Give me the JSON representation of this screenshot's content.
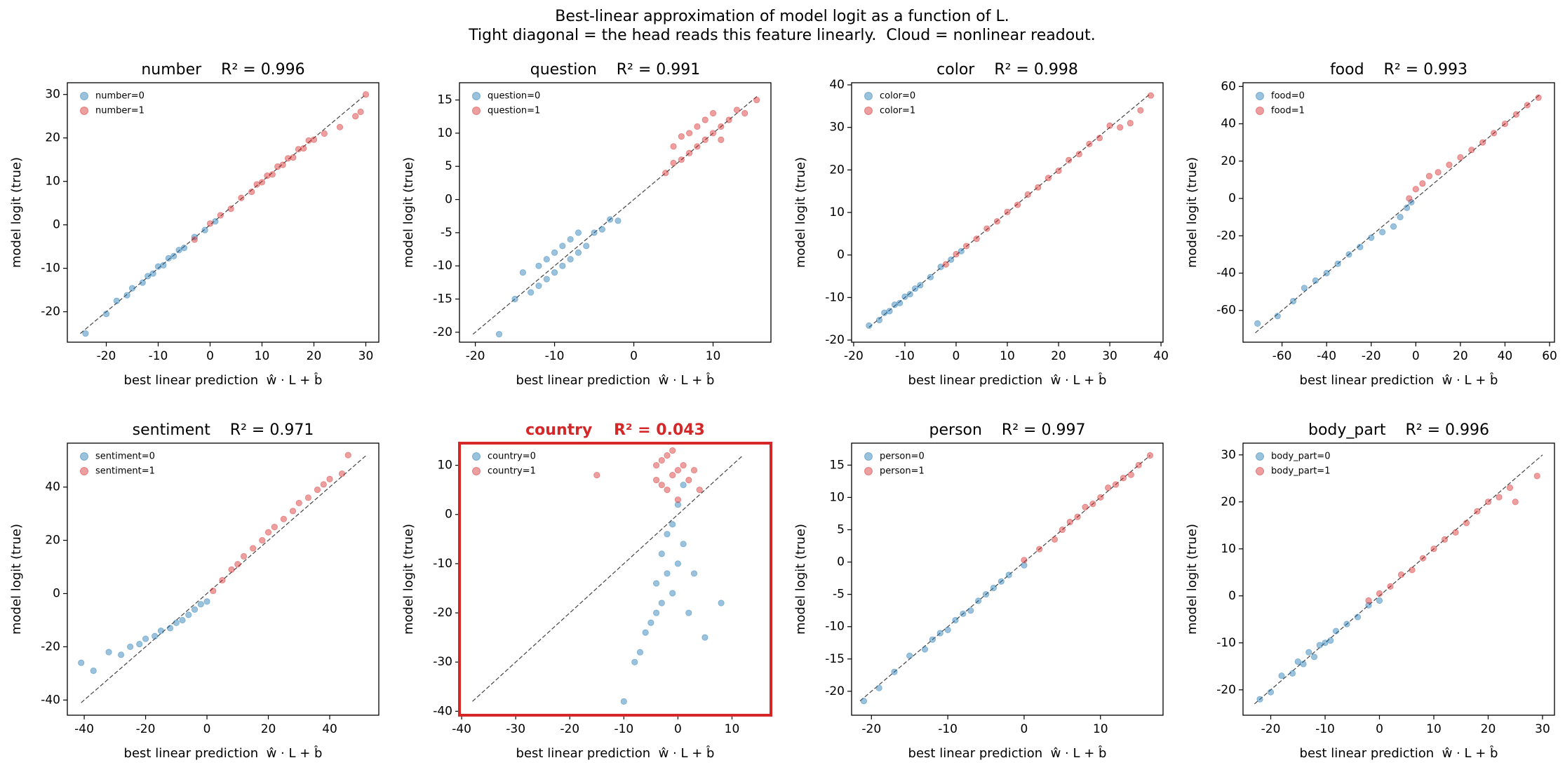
{
  "figure": {
    "title": "Best-linear approximation of model logit as a function of L.",
    "subtitle": "Tight diagonal = the head reads this feature linearly.  Cloud = nonlinear readout."
  },
  "chart_data": [
    {
      "type": "scatter",
      "title": "number    R² = 0.996",
      "xlabel": "best linear prediction  ŵ · L + b̂",
      "ylabel": "model logit (true)",
      "xlim": [
        -27.5,
        32.5
      ],
      "ylim": [
        -27,
        32.7
      ],
      "xticks": [
        -20,
        -10,
        0,
        10,
        20,
        30
      ],
      "yticks": [
        -20,
        -10,
        0,
        10,
        20,
        30
      ],
      "diagonal": [
        -25,
        30
      ],
      "legend": "upper left",
      "alpha": 0.45,
      "highlight": false,
      "series": [
        {
          "name": "number=0",
          "color": "#1f77b4",
          "x": [
            -24,
            -20,
            -18,
            -16,
            -15,
            -13,
            -12,
            -11,
            -10,
            -9,
            -8,
            -7,
            -6,
            -5,
            -3,
            -1,
            1
          ],
          "y": [
            -25,
            -20.5,
            -17.5,
            -16.2,
            -14.6,
            -13.3,
            -11.8,
            -11.2,
            -9.6,
            -9.3,
            -7.7,
            -7.2,
            -5.8,
            -5.3,
            -2.8,
            -1.2,
            0.8
          ]
        },
        {
          "name": "number=1",
          "color": "#d62728",
          "x": [
            -3,
            0,
            2,
            4,
            6,
            8,
            9,
            10,
            11,
            12,
            13,
            14,
            15,
            16,
            17,
            18,
            19,
            20,
            22,
            25,
            28,
            29,
            30
          ],
          "y": [
            -3.4,
            0.3,
            2.2,
            3.7,
            6.2,
            7.6,
            9.3,
            9.8,
            11.3,
            11.6,
            13.4,
            13.8,
            15.3,
            15.5,
            17.4,
            17.6,
            19.4,
            19.6,
            21,
            22.5,
            25,
            26,
            30
          ]
        }
      ]
    },
    {
      "type": "scatter",
      "title": "question    R² = 0.991",
      "xlabel": "best linear prediction  ŵ · L + b̂",
      "ylabel": "model logit (true)",
      "xlim": [
        -22,
        17.3
      ],
      "ylim": [
        -21.5,
        17.6
      ],
      "xticks": [
        -20,
        -10,
        0,
        10
      ],
      "yticks": [
        -20,
        -15,
        -10,
        -5,
        0,
        5,
        10,
        15
      ],
      "diagonal": [
        -20.3,
        15.6
      ],
      "legend": "upper left",
      "alpha": 0.45,
      "highlight": false,
      "series": [
        {
          "name": "question=0",
          "color": "#1f77b4",
          "x": [
            -17,
            -15,
            -14,
            -13,
            -12,
            -12,
            -11,
            -11,
            -10,
            -10,
            -9,
            -9,
            -8,
            -8,
            -7,
            -7,
            -6,
            -5,
            -4,
            -3,
            -2
          ],
          "y": [
            -20.3,
            -15,
            -11,
            -14,
            -13,
            -10,
            -12,
            -9,
            -11,
            -8,
            -10,
            -7,
            -9,
            -6,
            -8,
            -5,
            -7,
            -5,
            -4.5,
            -3,
            -3.2
          ]
        },
        {
          "name": "question=1",
          "color": "#d62728",
          "x": [
            4,
            5,
            5,
            6,
            6,
            7,
            7,
            8,
            8,
            9,
            9,
            10,
            10,
            11,
            11,
            12,
            13,
            14,
            15.5
          ],
          "y": [
            4,
            5.5,
            8,
            6,
            9.5,
            7,
            10,
            8,
            11,
            9,
            12,
            10,
            13,
            11,
            9,
            12,
            13.5,
            13,
            15
          ]
        }
      ]
    },
    {
      "type": "scatter",
      "title": "color    R² = 0.998",
      "xlabel": "best linear prediction  ŵ · L + b̂",
      "ylabel": "model logit (true)",
      "xlim": [
        -20.4,
        40.4
      ],
      "ylim": [
        -20.5,
        40.5
      ],
      "xticks": [
        -20,
        -10,
        0,
        10,
        20,
        30,
        40
      ],
      "yticks": [
        -20,
        -10,
        0,
        10,
        20,
        30,
        40
      ],
      "diagonal": [
        -17,
        38
      ],
      "legend": "upper left",
      "alpha": 0.45,
      "highlight": false,
      "series": [
        {
          "name": "color=0",
          "color": "#1f77b4",
          "x": [
            -17,
            -15,
            -14,
            -13,
            -12,
            -11,
            -10,
            -9,
            -8,
            -7,
            -5,
            -3,
            -1,
            1
          ],
          "y": [
            -16.6,
            -15.3,
            -13.6,
            -13.2,
            -11.7,
            -11.3,
            -9.8,
            -9.2,
            -7.9,
            -7.1,
            -5.2,
            -2.8,
            -1.1,
            0.9
          ]
        },
        {
          "name": "color=1",
          "color": "#d62728",
          "x": [
            -2,
            0,
            2,
            4,
            6,
            8,
            10,
            12,
            14,
            16,
            18,
            20,
            22,
            24,
            26,
            28,
            30,
            32,
            34,
            36,
            38
          ],
          "y": [
            -2.2,
            0.2,
            2.1,
            3.8,
            6.2,
            7.9,
            10.1,
            11.8,
            14.2,
            15.9,
            18.1,
            19.8,
            22.3,
            23.7,
            26.1,
            27.5,
            30.4,
            30,
            31,
            34,
            37.5
          ]
        }
      ]
    },
    {
      "type": "scatter",
      "title": "food    R² = 0.993",
      "xlabel": "best linear prediction  ŵ · L + b̂",
      "ylabel": "model logit (true)",
      "xlim": [
        -77.5,
        62.2
      ],
      "ylim": [
        -77,
        62
      ],
      "xticks": [
        -60,
        -40,
        -20,
        0,
        20,
        40,
        60
      ],
      "yticks": [
        -60,
        -40,
        -20,
        0,
        20,
        40,
        60
      ],
      "diagonal": [
        -72,
        56
      ],
      "legend": "upper left",
      "alpha": 0.45,
      "highlight": false,
      "series": [
        {
          "name": "food=0",
          "color": "#1f77b4",
          "x": [
            -71,
            -62,
            -55,
            -50,
            -45,
            -40,
            -35,
            -30,
            -25,
            -20,
            -15,
            -10,
            -7,
            -4,
            -2
          ],
          "y": [
            -67,
            -63,
            -55,
            -48,
            -44,
            -40,
            -35,
            -30,
            -26,
            -21,
            -18,
            -15,
            -10,
            -5,
            -2
          ]
        },
        {
          "name": "food=1",
          "color": "#d62728",
          "x": [
            -3,
            0,
            3,
            6,
            10,
            15,
            20,
            25,
            30,
            35,
            40,
            45,
            50,
            55
          ],
          "y": [
            0,
            5,
            8,
            12,
            14,
            18,
            22,
            26,
            30,
            35,
            40,
            45,
            50,
            54
          ]
        }
      ]
    },
    {
      "type": "scatter",
      "title": "sentiment    R² = 0.971",
      "xlabel": "best linear prediction  ŵ · L + b̂",
      "ylabel": "model logit (true)",
      "xlim": [
        -45.5,
        56
      ],
      "ylim": [
        -45.7,
        56.5
      ],
      "xticks": [
        -40,
        -20,
        0,
        20,
        40
      ],
      "yticks": [
        -40,
        -20,
        0,
        20,
        40
      ],
      "diagonal": [
        -41,
        52
      ],
      "legend": "upper left",
      "alpha": 0.45,
      "highlight": false,
      "series": [
        {
          "name": "sentiment=0",
          "color": "#1f77b4",
          "x": [
            -41,
            -37,
            -32,
            -28,
            -25,
            -22,
            -20,
            -17,
            -15,
            -12,
            -10,
            -8,
            -6,
            -4,
            -2,
            0
          ],
          "y": [
            -26,
            -29,
            -22,
            -23,
            -20,
            -19,
            -17,
            -16,
            -14,
            -13,
            -11,
            -10,
            -8,
            -6,
            -4,
            -3
          ]
        },
        {
          "name": "sentiment=1",
          "color": "#d62728",
          "x": [
            2,
            5,
            8,
            10,
            12,
            15,
            18,
            20,
            22,
            25,
            28,
            30,
            33,
            36,
            38,
            40,
            44,
            46
          ],
          "y": [
            1,
            5,
            9,
            11,
            14,
            17,
            20,
            23,
            25,
            28,
            31,
            34,
            36,
            39,
            41,
            43,
            45,
            52
          ]
        }
      ]
    },
    {
      "type": "scatter",
      "title": "country    R² = 0.043",
      "xlabel": "best linear prediction  ŵ · L + b̂",
      "ylabel": "model logit (true)",
      "xlim": [
        -40.4,
        17.2
      ],
      "ylim": [
        -40.8,
        14.5
      ],
      "xticks": [
        -40,
        -30,
        -20,
        -10,
        0,
        10
      ],
      "yticks": [
        -40,
        -30,
        -20,
        -10,
        0,
        10
      ],
      "diagonal": [
        -38,
        12
      ],
      "legend": "upper left",
      "alpha": 0.45,
      "highlight": true,
      "highlight_color": "#d62728",
      "series": [
        {
          "name": "country=0",
          "color": "#1f77b4",
          "x": [
            -10,
            -8,
            -7,
            -6,
            -5,
            -4,
            -4,
            -3,
            -3,
            -2,
            -2,
            -1,
            -1,
            0,
            0,
            1,
            1,
            2,
            3,
            5,
            8
          ],
          "y": [
            -38,
            -30,
            -28,
            -24,
            -22,
            -20,
            -14,
            -18,
            -8,
            -12,
            -4,
            -16,
            -2,
            -10,
            2,
            -6,
            6,
            -20,
            -12,
            -25,
            -18
          ]
        },
        {
          "name": "country=1",
          "color": "#d62728",
          "x": [
            -15,
            -4,
            -4,
            -3,
            -3,
            -2,
            -2,
            -1,
            -1,
            0,
            0,
            1,
            2,
            3,
            4
          ],
          "y": [
            8,
            7,
            10,
            6,
            11,
            5,
            12,
            8,
            13,
            3,
            9,
            10,
            7,
            9,
            5
          ]
        }
      ]
    },
    {
      "type": "scatter",
      "title": "person    R² = 0.997",
      "xlabel": "best linear prediction  ŵ · L + b̂",
      "ylabel": "model logit (true)",
      "xlim": [
        -22.6,
        18.2
      ],
      "ylim": [
        -23.7,
        18.4
      ],
      "xticks": [
        -20,
        -10,
        0,
        10
      ],
      "yticks": [
        -20,
        -15,
        -10,
        -5,
        0,
        5,
        10,
        15
      ],
      "diagonal": [
        -21.5,
        16.5
      ],
      "legend": "upper left",
      "alpha": 0.45,
      "highlight": false,
      "series": [
        {
          "name": "person=0",
          "color": "#1f77b4",
          "x": [
            -21,
            -19,
            -17,
            -15,
            -13,
            -12,
            -11,
            -10,
            -9,
            -8,
            -7,
            -6,
            -5,
            -4,
            -3,
            -2,
            0
          ],
          "y": [
            -21.5,
            -19.5,
            -17,
            -14.5,
            -13.5,
            -12,
            -11,
            -10.5,
            -9,
            -8,
            -7.5,
            -6,
            -5,
            -4,
            -3,
            -2,
            -0.5
          ]
        },
        {
          "name": "person=1",
          "color": "#d62728",
          "x": [
            0,
            2,
            4,
            5,
            6,
            7,
            8,
            9,
            10,
            11,
            12,
            13,
            14,
            15,
            16.5
          ],
          "y": [
            0.3,
            2,
            3.5,
            5,
            6.2,
            7,
            8.5,
            9,
            10,
            11.5,
            12,
            13,
            13.5,
            15,
            16.5
          ]
        }
      ]
    },
    {
      "type": "scatter",
      "title": "body_part    R² = 0.996",
      "xlabel": "best linear prediction  ŵ · L + b̂",
      "ylabel": "model logit (true)",
      "xlim": [
        -25.1,
        32.2
      ],
      "ylim": [
        -25.4,
        32.5
      ],
      "xticks": [
        -20,
        -10,
        0,
        10,
        20,
        30
      ],
      "yticks": [
        -20,
        -10,
        0,
        10,
        20,
        30
      ],
      "diagonal": [
        -23,
        30
      ],
      "legend": "upper left",
      "alpha": 0.45,
      "highlight": false,
      "series": [
        {
          "name": "body_part=0",
          "color": "#1f77b4",
          "x": [
            -22,
            -20,
            -18,
            -16,
            -15,
            -14,
            -13,
            -12,
            -11,
            -10,
            -9,
            -8,
            -6,
            -4,
            -2,
            0
          ],
          "y": [
            -22,
            -20.5,
            -17,
            -16.5,
            -14,
            -14.5,
            -12,
            -13,
            -10.5,
            -10,
            -9.5,
            -7.5,
            -6,
            -4.5,
            -2,
            -1
          ]
        },
        {
          "name": "body_part=1",
          "color": "#d62728",
          "x": [
            -2,
            0,
            2,
            4,
            6,
            8,
            10,
            12,
            14,
            16,
            18,
            20,
            22,
            24,
            25,
            29
          ],
          "y": [
            -1,
            0.5,
            2,
            4.5,
            5.5,
            8,
            10,
            12,
            13.5,
            15.5,
            18,
            20,
            21,
            23,
            20,
            25.5
          ]
        }
      ]
    }
  ]
}
